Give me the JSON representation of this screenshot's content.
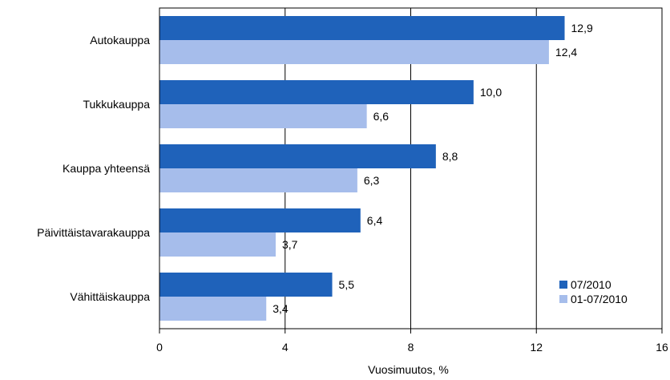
{
  "chart_data": {
    "type": "bar",
    "orientation": "horizontal",
    "categories": [
      "Autokauppa",
      "Tukkukauppa",
      "Kauppa yhteensä",
      "Päivittäistavarakauppa",
      "Vähittäiskauppa"
    ],
    "series": [
      {
        "name": "07/2010",
        "values": [
          12.9,
          10.0,
          8.8,
          6.4,
          5.5
        ],
        "labels": [
          "12,9",
          "10,0",
          "8,8",
          "6,4",
          "5,5"
        ],
        "color": "#1f62ba"
      },
      {
        "name": "01-07/2010",
        "values": [
          12.4,
          6.6,
          6.3,
          3.7,
          3.4
        ],
        "labels": [
          "12,4",
          "6,6",
          "6,3",
          "3,7",
          "3,4"
        ],
        "color": "#a6bdeb"
      }
    ],
    "xlabel": "Vuosimuutos, %",
    "xlim": [
      0,
      16
    ],
    "xticks": [
      0,
      4,
      8,
      12,
      16
    ],
    "xtick_labels": [
      "0",
      "4",
      "8",
      "12",
      "16"
    ],
    "grid": "vertical",
    "legend_position": "bottom-right"
  }
}
